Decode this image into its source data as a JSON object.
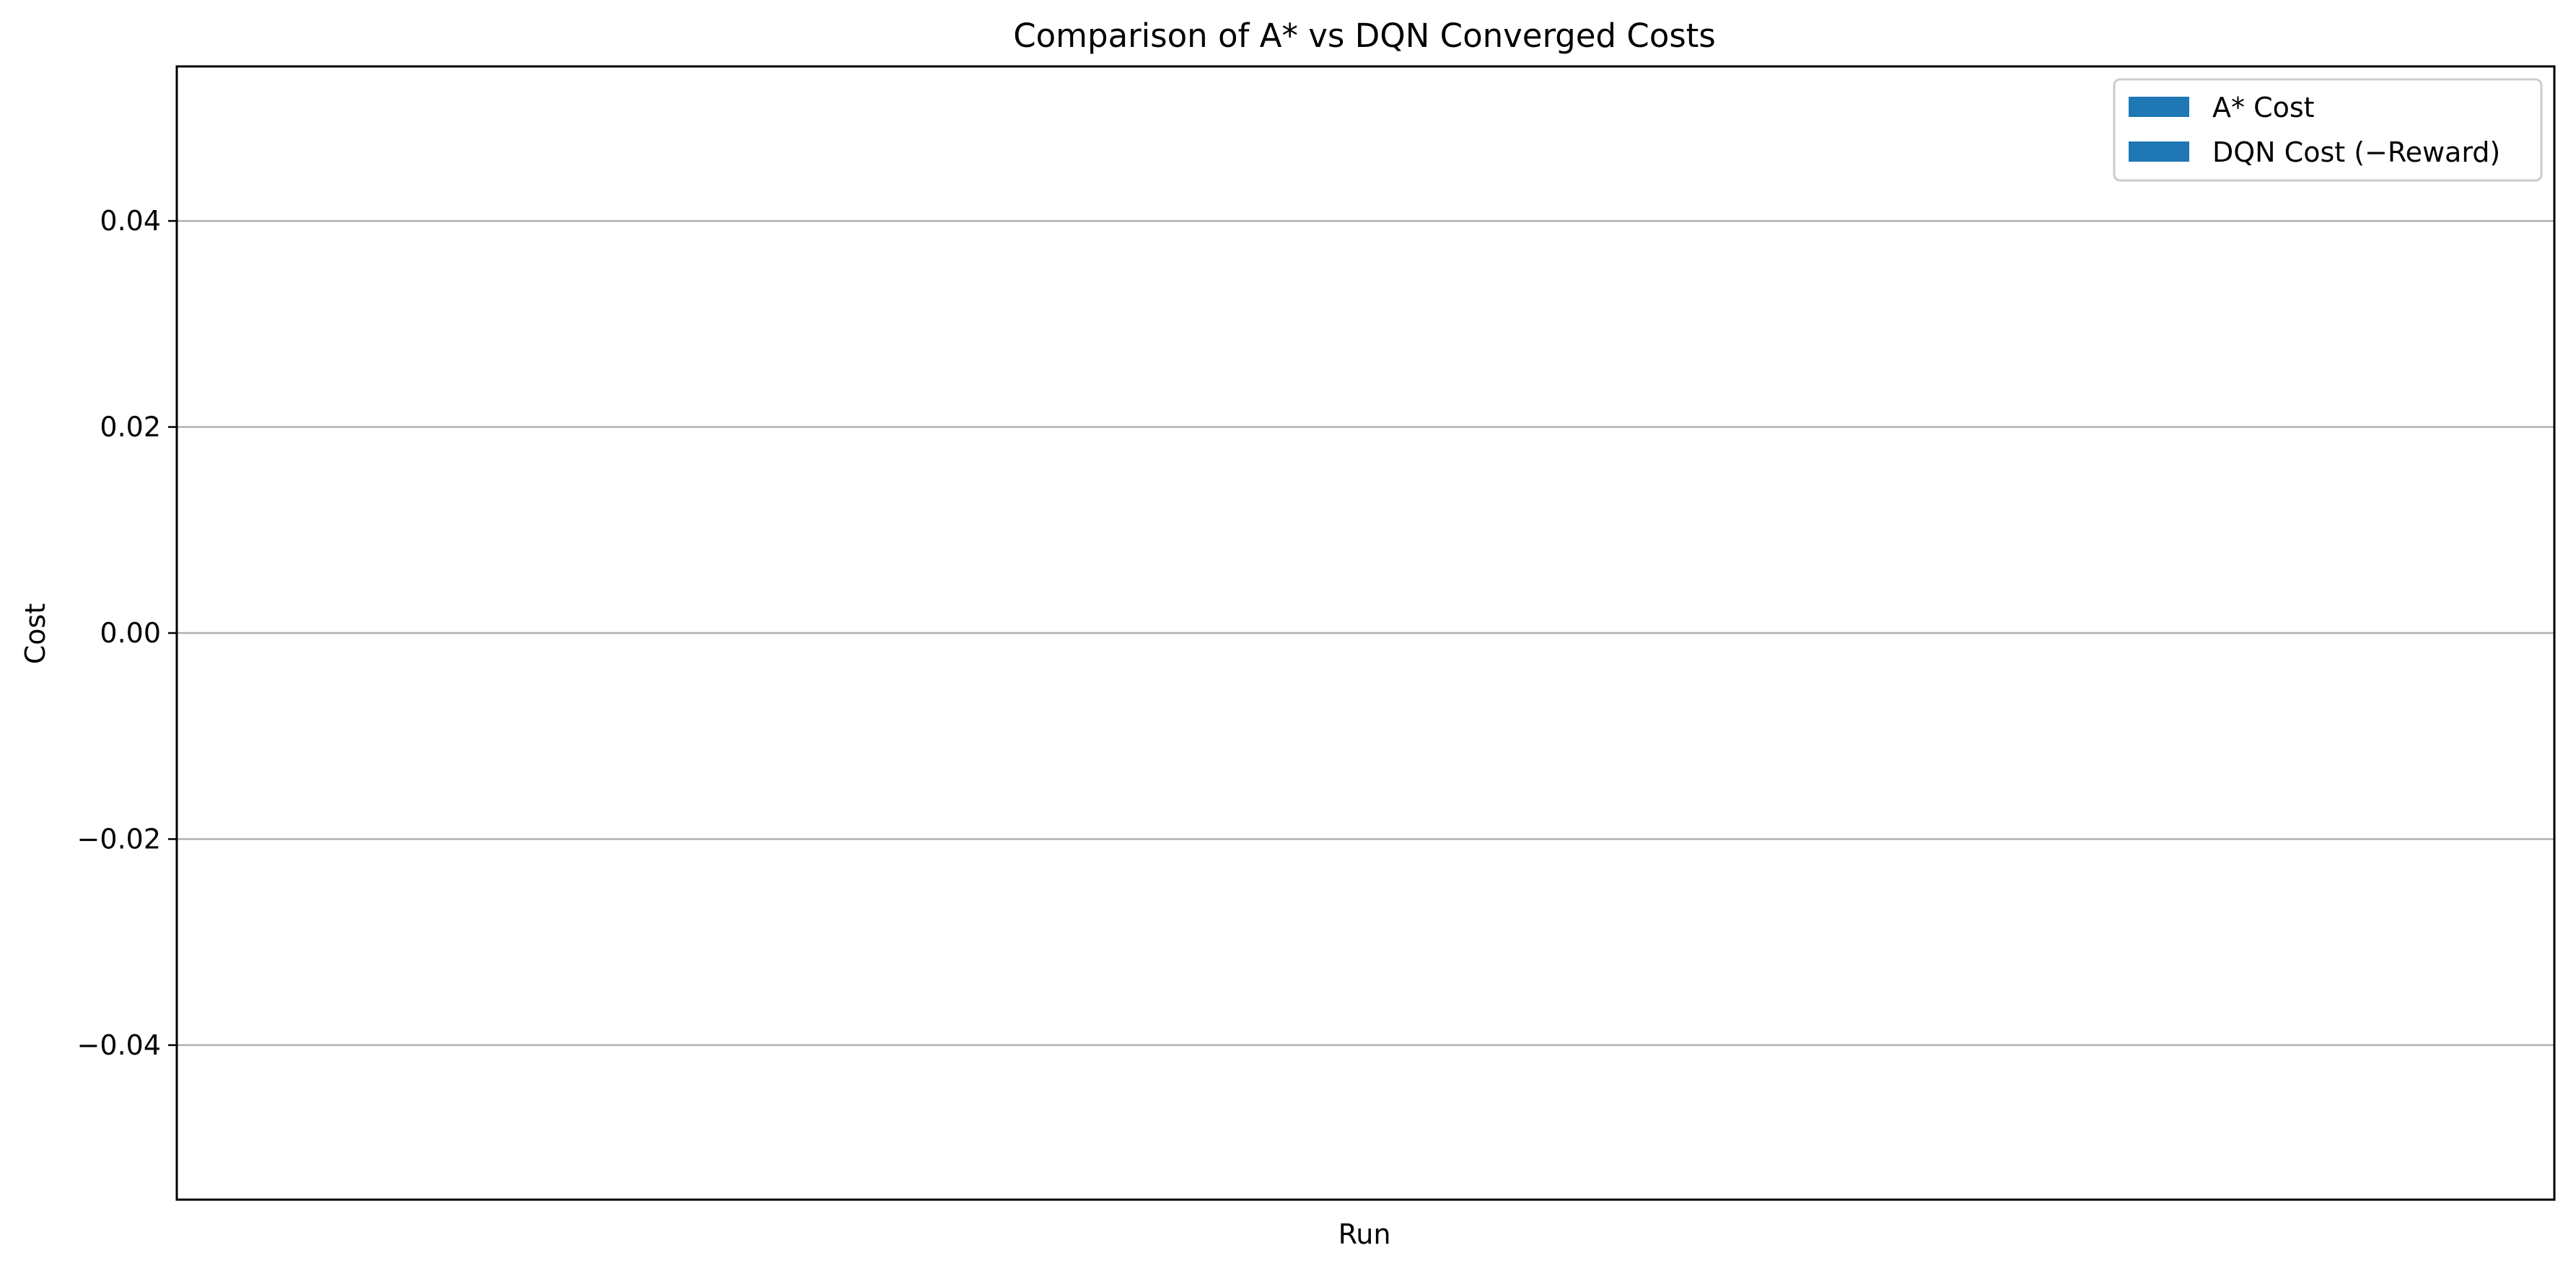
{
  "chart_data": {
    "type": "bar",
    "title": "Comparison of A* vs DQN Converged Costs",
    "xlabel": "Run",
    "ylabel": "Cost",
    "categories": [],
    "series": [
      {
        "name": "A* Cost",
        "values": [],
        "color": "#1f77b4"
      },
      {
        "name": "DQN Cost (−Reward)",
        "values": [],
        "color": "#1f77b4"
      }
    ],
    "ylim": [
      -0.055,
      0.055
    ],
    "yticks": [
      -0.04,
      -0.02,
      0.0,
      0.02,
      0.04
    ],
    "ytick_labels": [
      "−0.04",
      "−0.02",
      "0.00",
      "0.02",
      "0.04"
    ],
    "grid": "y",
    "legend_position": "upper right"
  }
}
